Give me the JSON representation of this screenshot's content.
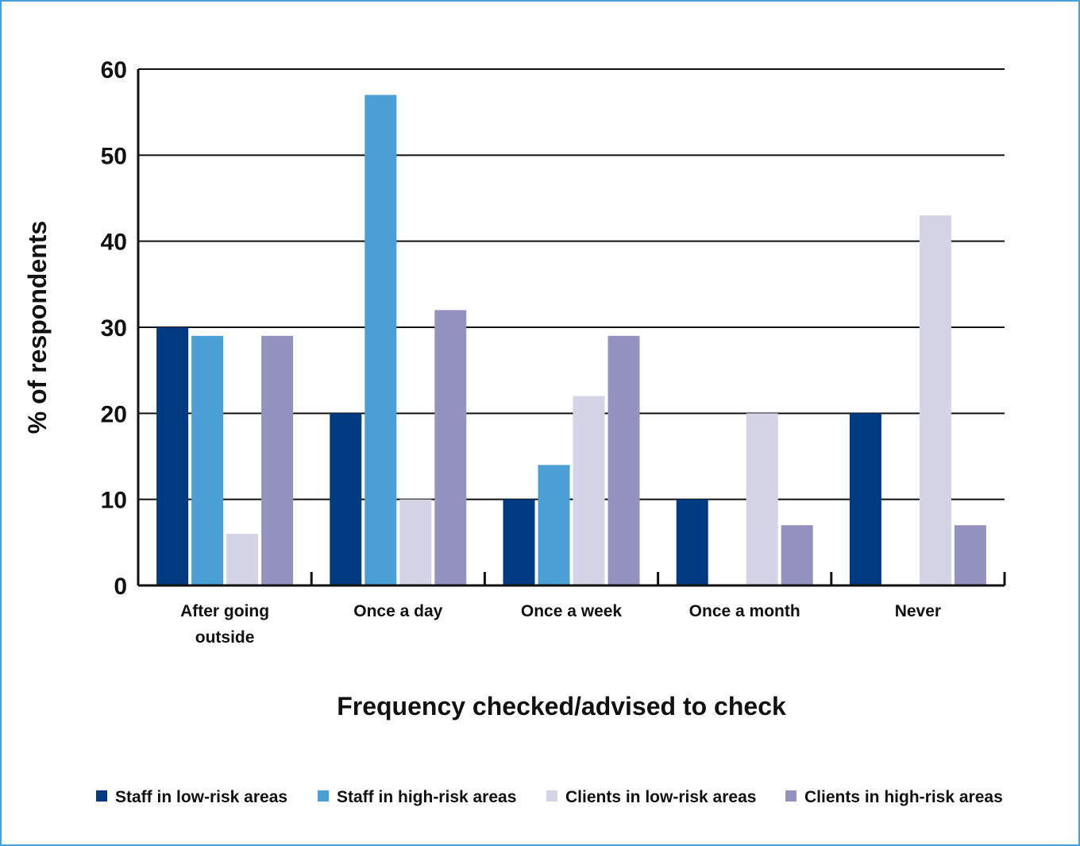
{
  "chart_data": {
    "type": "bar",
    "title": "",
    "xlabel": "Frequency checked/advised to check",
    "ylabel": "% of respondents",
    "ylim": [
      0,
      60
    ],
    "yticks": [
      "0",
      "10",
      "20",
      "30",
      "40",
      "50",
      "60"
    ],
    "grid": true,
    "legend_position": "bottom",
    "categories": [
      [
        "After going",
        "outside"
      ],
      [
        "Once a day"
      ],
      [
        "Once a week"
      ],
      [
        "Once a month"
      ],
      [
        "Never"
      ]
    ],
    "series": [
      {
        "name": "Staff in low-risk areas",
        "color": "#003a80",
        "values": [
          30,
          20,
          10,
          10,
          20
        ]
      },
      {
        "name": "Staff in high-risk areas",
        "color": "#4a9fd4",
        "values": [
          29,
          57,
          14,
          0,
          0
        ]
      },
      {
        "name": "Clients in low-risk areas",
        "color": "#d4d4e6",
        "values": [
          6,
          10,
          22,
          20,
          43
        ]
      },
      {
        "name": "Clients in high-risk areas",
        "color": "#9493bf",
        "values": [
          29,
          32,
          29,
          7,
          7
        ]
      }
    ]
  }
}
